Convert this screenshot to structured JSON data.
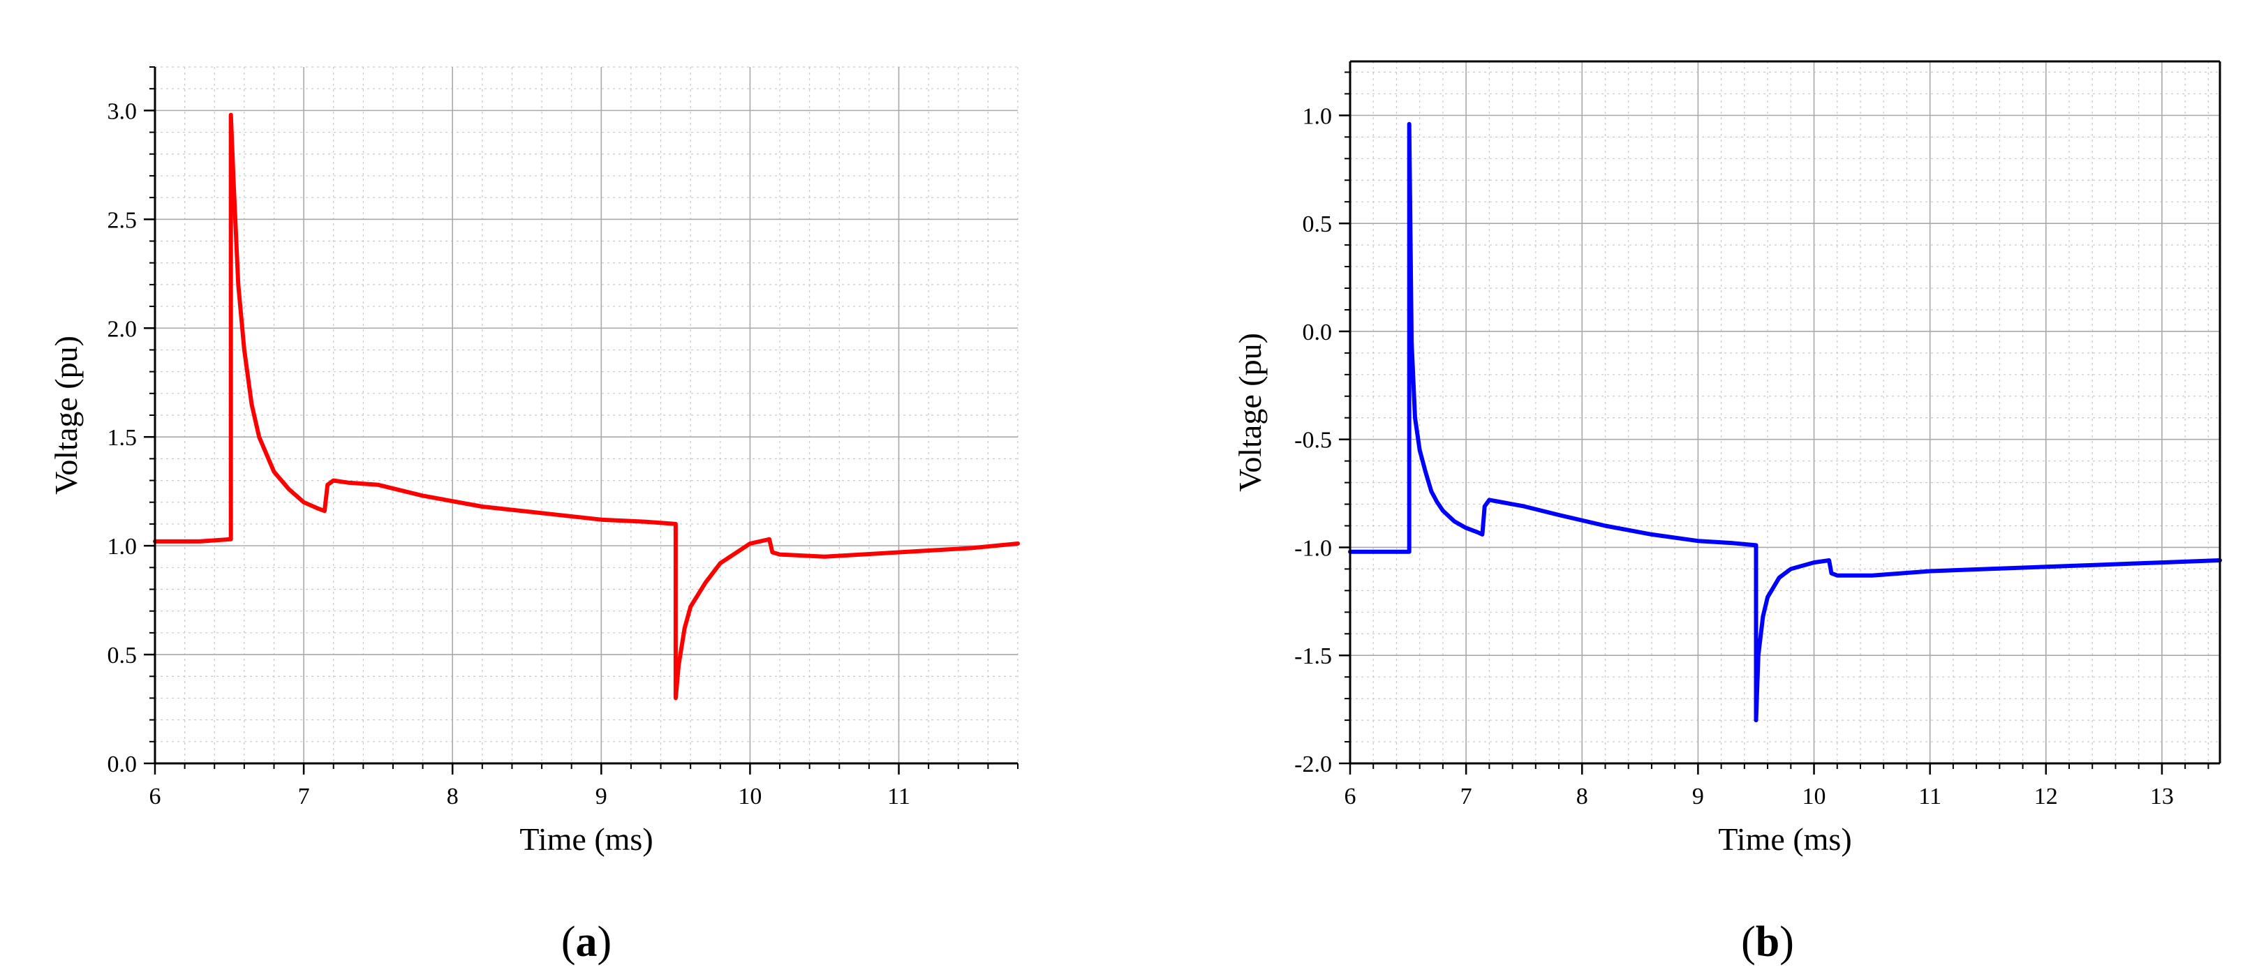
{
  "chart_data": [
    {
      "type": "line",
      "panel": "(a)",
      "panel_letter": "a",
      "xlabel": "Time (ms)",
      "ylabel": "Voltage (pu)",
      "xlim": [
        6,
        11.8
      ],
      "ylim": [
        0,
        3.2
      ],
      "x_ticks": [
        6,
        7,
        8,
        9,
        10,
        11
      ],
      "x_tick_labels": [
        "6",
        "7",
        "8",
        "9",
        "10",
        "11"
      ],
      "y_ticks": [
        0,
        0.5,
        1,
        1.5,
        2,
        2.5,
        3
      ],
      "y_tick_labels": [
        "0.0",
        "0.5",
        "1.0",
        "1.5",
        "2.0",
        "2.5",
        "3.0"
      ],
      "grid": true,
      "series": [
        {
          "color": "#ff0000",
          "x": [
            6.0,
            6.3,
            6.51,
            6.51,
            6.53,
            6.56,
            6.6,
            6.65,
            6.7,
            6.75,
            6.8,
            6.9,
            7.0,
            7.1,
            7.14,
            7.16,
            7.2,
            7.3,
            7.5,
            7.8,
            8.2,
            8.6,
            9.0,
            9.3,
            9.5,
            9.5,
            9.52,
            9.56,
            9.6,
            9.7,
            9.8,
            10.0,
            10.13,
            10.15,
            10.2,
            10.5,
            11.0,
            11.5,
            11.8
          ],
          "y": [
            1.02,
            1.02,
            1.03,
            2.98,
            2.65,
            2.2,
            1.9,
            1.65,
            1.5,
            1.42,
            1.34,
            1.26,
            1.2,
            1.17,
            1.16,
            1.28,
            1.3,
            1.29,
            1.28,
            1.23,
            1.18,
            1.15,
            1.12,
            1.11,
            1.1,
            0.3,
            0.45,
            0.62,
            0.72,
            0.83,
            0.92,
            1.01,
            1.03,
            0.97,
            0.96,
            0.95,
            0.97,
            0.99,
            1.01
          ]
        }
      ]
    },
    {
      "type": "line",
      "panel": "(b)",
      "panel_letter": "b",
      "xlabel": "Time (ms)",
      "ylabel": "Voltage (pu)",
      "xlim": [
        6,
        13.5
      ],
      "ylim": [
        -2.0,
        1.25
      ],
      "x_ticks": [
        6,
        7,
        8,
        9,
        10,
        11,
        12,
        13
      ],
      "x_tick_labels": [
        "6",
        "7",
        "8",
        "9",
        "10",
        "11",
        "12",
        "13"
      ],
      "y_ticks": [
        -2.0,
        -1.5,
        -1.0,
        -0.5,
        0.0,
        0.5,
        1.0
      ],
      "y_tick_labels": [
        "-2.0",
        "-1.5",
        "-1.0",
        "-0.5",
        "0.0",
        "0.5",
        "1.0"
      ],
      "grid": true,
      "series": [
        {
          "color": "#0000ff",
          "x": [
            6.0,
            6.3,
            6.51,
            6.51,
            6.53,
            6.56,
            6.6,
            6.65,
            6.7,
            6.75,
            6.8,
            6.9,
            7.0,
            7.1,
            7.14,
            7.16,
            7.2,
            7.3,
            7.5,
            7.8,
            8.2,
            8.6,
            9.0,
            9.3,
            9.5,
            9.5,
            9.52,
            9.56,
            9.6,
            9.7,
            9.8,
            10.0,
            10.13,
            10.15,
            10.2,
            10.5,
            11.0,
            11.5,
            12.0,
            12.5,
            13.0,
            13.5
          ],
          "y": [
            -1.02,
            -1.02,
            -1.02,
            0.96,
            -0.05,
            -0.4,
            -0.55,
            -0.65,
            -0.74,
            -0.79,
            -0.83,
            -0.88,
            -0.91,
            -0.93,
            -0.94,
            -0.81,
            -0.78,
            -0.79,
            -0.81,
            -0.85,
            -0.9,
            -0.94,
            -0.97,
            -0.98,
            -0.99,
            -1.8,
            -1.5,
            -1.32,
            -1.23,
            -1.14,
            -1.1,
            -1.07,
            -1.06,
            -1.12,
            -1.13,
            -1.13,
            -1.11,
            -1.1,
            -1.09,
            -1.08,
            -1.07,
            -1.06
          ]
        }
      ]
    }
  ]
}
